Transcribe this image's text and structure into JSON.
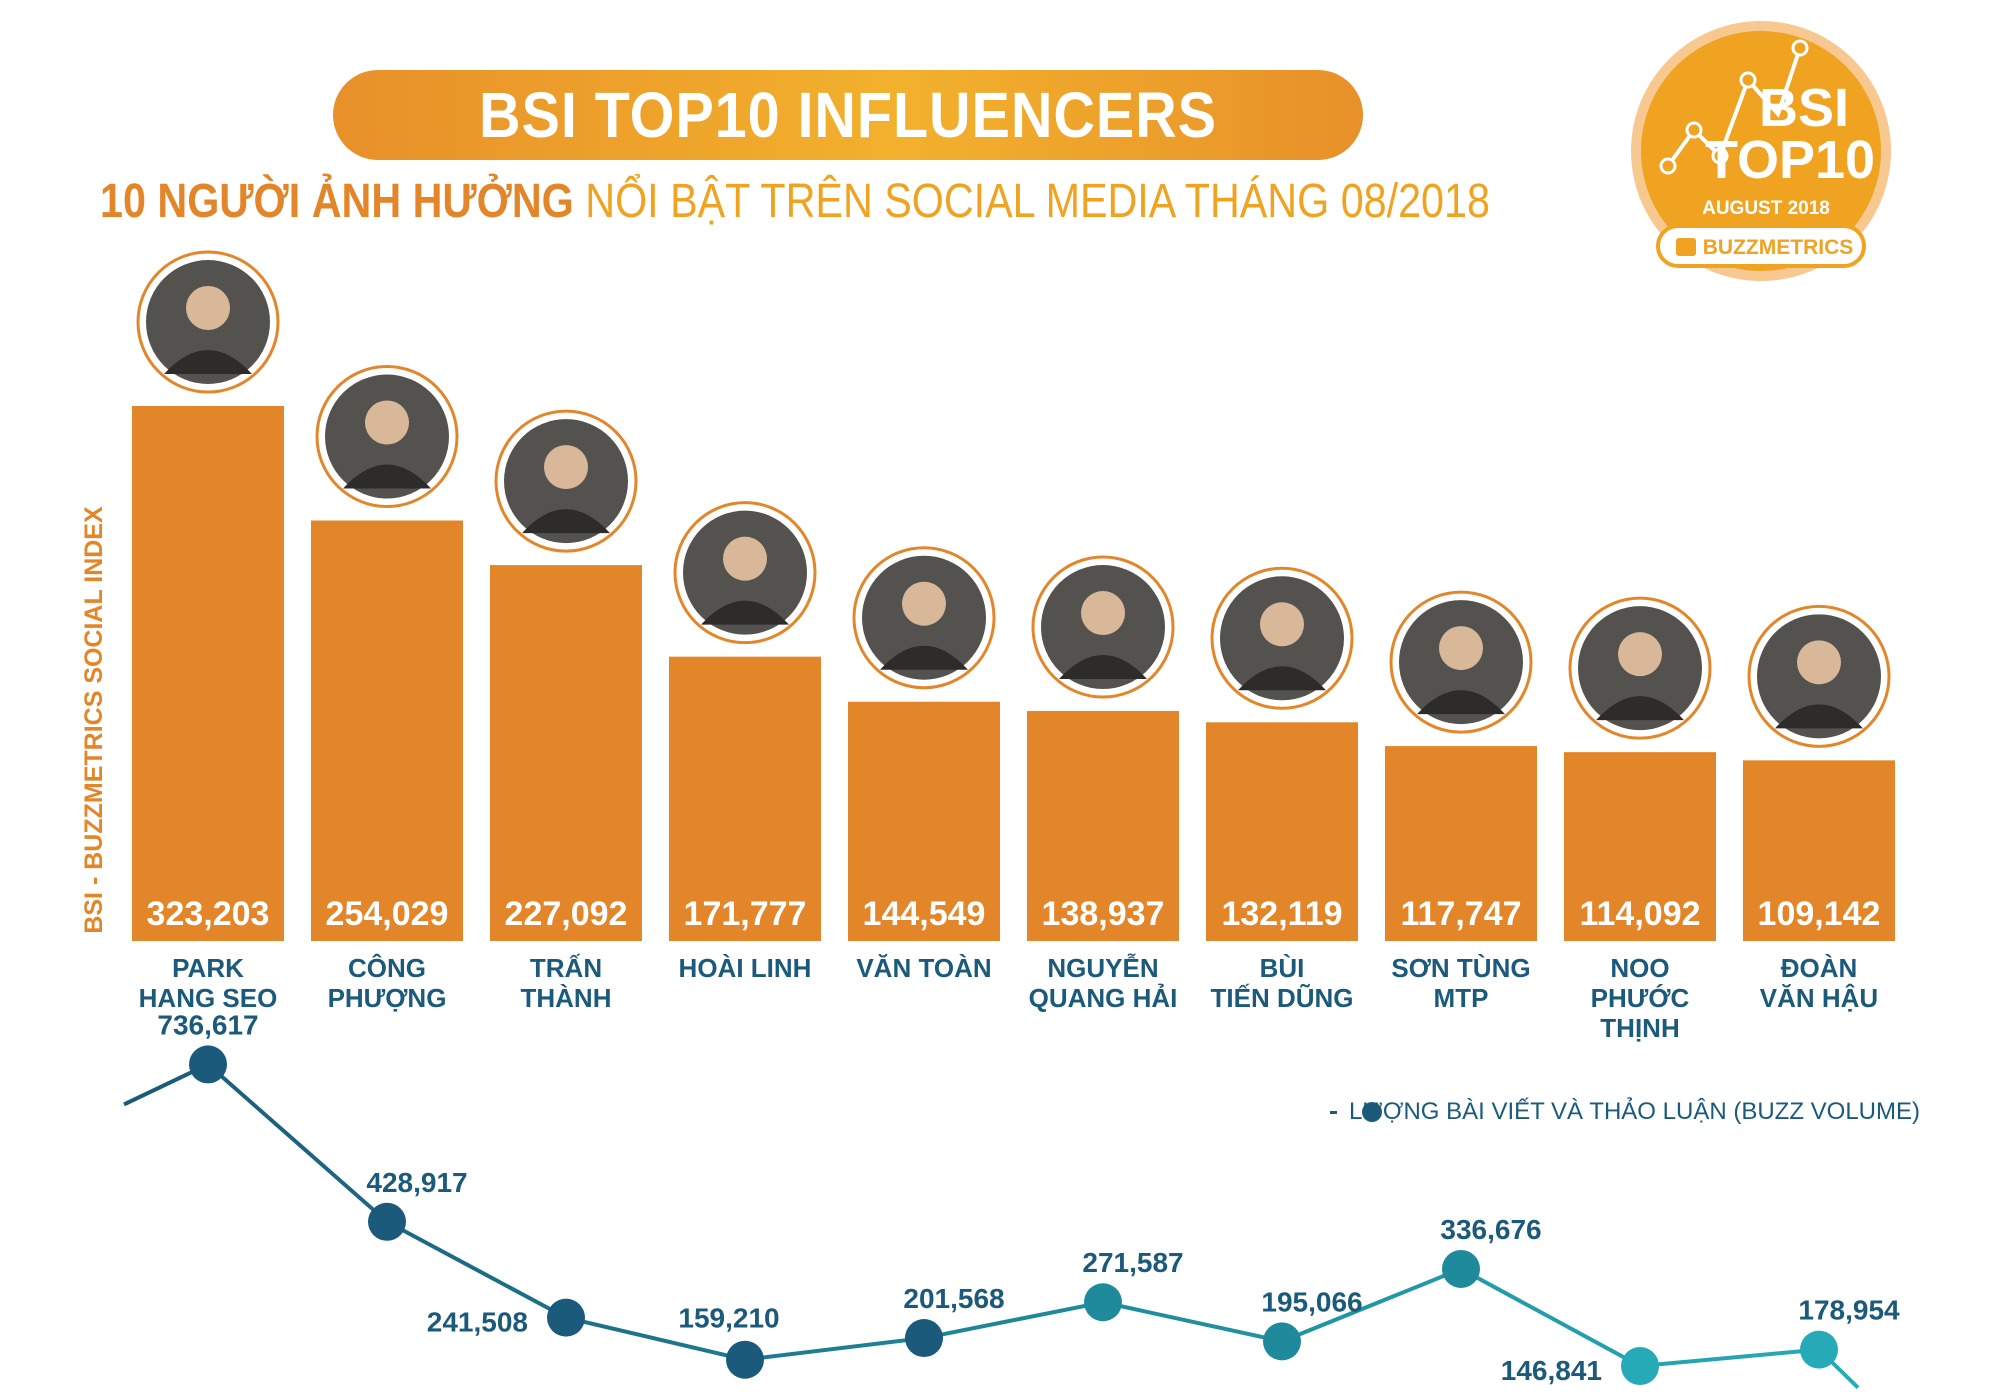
{
  "header": {
    "title": "BSI TOP10 INFLUENCERS",
    "subtitle_strong": "10 NGƯỜI ẢNH HƯỞNG",
    "subtitle_light": " NỔI BẬT TRÊN SOCIAL MEDIA THÁNG 08/2018"
  },
  "badge": {
    "line1": "BSI",
    "line2": "TOP10",
    "line3": "AUGUST 2018",
    "brand": "BUZZMETRICS"
  },
  "colors": {
    "bar": "#e3862a",
    "line_dark": "#1b5a7a",
    "line_light": "#26aab7",
    "badge_orange": "#f0a321"
  },
  "chart_data": [
    {
      "type": "bar",
      "title": "BSI TOP10 INFLUENCERS",
      "ylabel": "BSI - BUZZMETRICS SOCIAL INDEX",
      "ylim": [
        0,
        330000
      ],
      "categories": [
        [
          "PARK",
          "HANG SEO"
        ],
        [
          "CÔNG",
          "PHƯỢNG"
        ],
        [
          "TRẤN",
          "THÀNH"
        ],
        [
          "HOÀI LINH"
        ],
        [
          "VĂN TOÀN"
        ],
        [
          "NGUYỄN",
          "QUANG HẢI"
        ],
        [
          "BÙI",
          "TIẾN DŨNG"
        ],
        [
          "SƠN TÙNG",
          "MTP"
        ],
        [
          "NOO",
          "PHƯỚC",
          "THỊNH"
        ],
        [
          "ĐOÀN",
          "VĂN HẬU"
        ]
      ],
      "values": [
        323203,
        254029,
        227092,
        171777,
        144549,
        138937,
        132119,
        117747,
        114092,
        109142
      ],
      "value_labels": [
        "323,203",
        "254,029",
        "227,092",
        "171,777",
        "144,549",
        "138,937",
        "132,119",
        "117,747",
        "114,092",
        "109,142"
      ]
    },
    {
      "type": "line",
      "name": "LƯỢNG BÀI VIẾT VÀ THẢO LUẬN (BUZZ VOLUME)",
      "values": [
        736617,
        428917,
        241508,
        159210,
        201568,
        271587,
        195066,
        336676,
        146841,
        178954
      ],
      "value_labels": [
        "736,617",
        "428,917",
        "241,508",
        "159,210",
        "201,568",
        "271,587",
        "195,066",
        "336,676",
        "146,841",
        "178,954"
      ],
      "ylim": [
        100000,
        800000
      ]
    }
  ],
  "legend": {
    "label": "LƯỢNG BÀI VIẾT VÀ THẢO LUẬN (BUZZ VOLUME)"
  }
}
